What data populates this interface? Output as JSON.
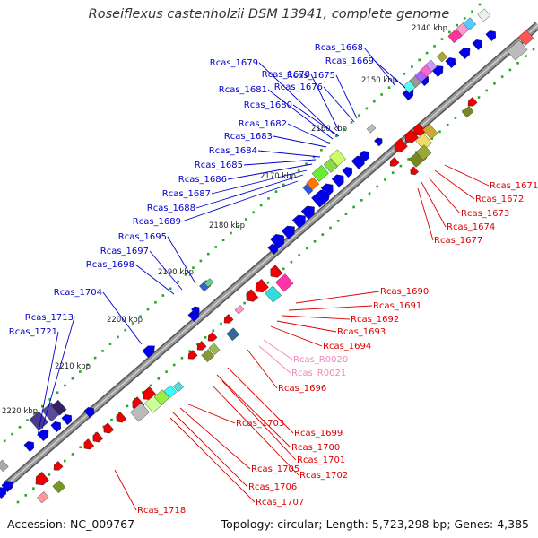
{
  "title": "Roseiflexus castenholzii DSM 13941, complete genome",
  "footer": {
    "accession": "Accession: NC_009767",
    "summary": "Topology: circular; Length: 5,723,298 bp; Genes: 4,385"
  },
  "colors": {
    "forward_label": "#0000cc",
    "reverse_label": "#dd0000",
    "rna_label": "#ee88bb",
    "backbone": "#999999",
    "tick": "#22aa22",
    "forward_gene": "#0000ee",
    "reverse_gene": "#ee0000"
  },
  "kbp_ticks": [
    "2140 kbp",
    "2150 kbp",
    "2160 kbp",
    "2170 kbp",
    "2180 kbp",
    "2190 kbp",
    "2200 kbp",
    "2210 kbp",
    "2220 kbp"
  ],
  "forward_genes": [
    "Rcas_1668",
    "Rcas_1669",
    "Rcas_1675",
    "Rcas_1676",
    "Rcas_1678",
    "Rcas_1679",
    "Rcas_1680",
    "Rcas_1681",
    "Rcas_1682",
    "Rcas_1683",
    "Rcas_1684",
    "Rcas_1685",
    "Rcas_1686",
    "Rcas_1687",
    "Rcas_1688",
    "Rcas_1689",
    "Rcas_1695",
    "Rcas_1697",
    "Rcas_1698",
    "Rcas_1704",
    "Rcas_1713",
    "Rcas_1721"
  ],
  "reverse_genes": [
    "Rcas_1671",
    "Rcas_1672",
    "Rcas_1673",
    "Rcas_1674",
    "Rcas_1677",
    "Rcas_1690",
    "Rcas_1691",
    "Rcas_1692",
    "Rcas_1693",
    "Rcas_1694",
    "Rcas_1696",
    "Rcas_1699",
    "Rcas_1700",
    "Rcas_1701",
    "Rcas_1702",
    "Rcas_1703",
    "Rcas_1705",
    "Rcas_1706",
    "Rcas_1707",
    "Rcas_1718"
  ],
  "rna_genes": [
    "Rcas_R0020",
    "Rcas_R0021"
  ]
}
